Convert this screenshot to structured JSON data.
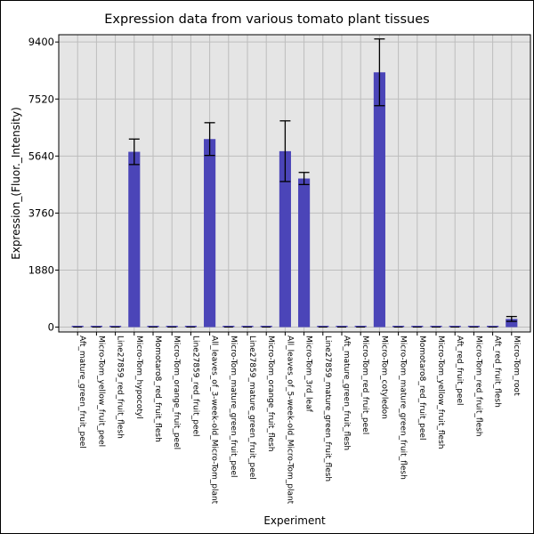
{
  "chart_data": {
    "type": "bar",
    "title": "Expression data from various tomato plant tissues",
    "xlabel": "Experiment",
    "ylabel": "Expression_(Fluor._Intensity)",
    "ylim": [
      -160,
      9640
    ],
    "yticks": [
      0,
      1880,
      3760,
      5640,
      7520,
      9400
    ],
    "grid": true,
    "bar_color": "#4b45b8",
    "plot_bg": "#e5e5e5",
    "categories": [
      "Aft_mature_green_fruit_peel",
      "Micro-Tom_yellow_fruit_peel",
      "Line27859_red_fruit_flesh",
      "Micro-Tom_hypocotyl",
      "Momotaro8_red_fruit_flesh",
      "Micro-Tom_orange_fruit_peel",
      "Line27859_red_fruit_peel",
      "All_leaves_of_3-week-old_Micro-Tom_plant",
      "Micro-Tom_mature_green_fruit_peel",
      "Line27859_mature_green_fruit_peel",
      "Micro-Tom_orange_fruit_flesh",
      "All_leaves_of_5-week-old_Micro-Tom_plant",
      "Micro-Tom_3rd_leaf",
      "Line27859_mature_green_fruit_flesh",
      "Aft_mature_green_fruit_flesh",
      "Micro-Tom_red_fruit_peel",
      "Micro-Tom_cotyledon",
      "Micro-Tom_mature_green_fruit_flesh",
      "Momotaro8_red_fruit_peel",
      "Micro-Tom_yellow_fruit_flesh",
      "Aft_red_fruit_peel",
      "Micro-Tom_red_fruit_flesh",
      "Aft_red_fruit_flesh",
      "Micro-Tom_root"
    ],
    "values": [
      0,
      0,
      0,
      5780,
      0,
      0,
      0,
      6200,
      0,
      0,
      0,
      5800,
      4900,
      0,
      0,
      0,
      8400,
      0,
      0,
      0,
      0,
      0,
      0,
      270
    ],
    "errors": [
      0,
      0,
      0,
      420,
      0,
      0,
      0,
      540,
      0,
      0,
      0,
      1000,
      200,
      0,
      0,
      0,
      1100,
      0,
      0,
      0,
      0,
      0,
      0,
      80
    ]
  }
}
